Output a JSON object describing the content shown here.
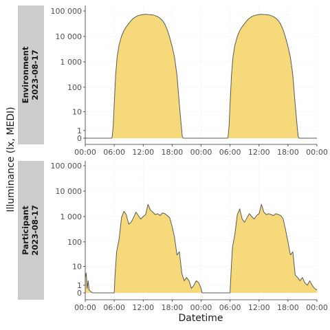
{
  "chart_data": {
    "type": "area",
    "xlabel": "Datetime",
    "ylabel": "Illuminance (lx, MEDI)",
    "x_ticks": [
      "00:00",
      "06:00",
      "12:00",
      "18:00",
      "00:00",
      "06:00",
      "12:00",
      "18:00",
      "00:00"
    ],
    "x_tick_hours": [
      0,
      6,
      12,
      18,
      24,
      30,
      36,
      42,
      48
    ],
    "x_range_hours": [
      0,
      48
    ],
    "y_scale": "symlog",
    "y_ticks": [
      "0",
      "1",
      "10",
      "100",
      "1 000",
      "10 000",
      "100 000"
    ],
    "y_tick_values": [
      0,
      1,
      10,
      100,
      1000,
      10000,
      100000
    ],
    "grid": true,
    "fill_color": "#f5d97a",
    "line_color": "#595959",
    "strip_color": "#cccccc",
    "panels": [
      {
        "strip_label_line1": "Environment",
        "strip_label_line2": "2023-08-17",
        "x_hours": [
          0,
          2,
          4,
          5.5,
          5.6,
          5.8,
          6,
          6.3,
          6.6,
          7,
          7.5,
          8,
          8.5,
          9,
          9.5,
          10,
          10.5,
          11,
          11.5,
          12,
          12.5,
          13,
          13.5,
          14,
          14.5,
          15,
          15.5,
          16,
          16.5,
          17,
          17.5,
          18,
          18.5,
          19,
          19.5,
          19.9,
          20.1,
          20.3,
          22,
          24,
          26,
          28,
          29.5,
          29.6,
          29.8,
          30,
          30.3,
          30.6,
          31,
          31.5,
          32,
          32.5,
          33,
          33.5,
          34,
          34.5,
          35,
          35.5,
          36,
          36.5,
          37,
          37.5,
          38,
          38.5,
          39,
          39.5,
          40,
          40.5,
          41,
          41.5,
          42,
          42.5,
          43,
          43.5,
          43.9,
          44.1,
          44.3,
          46,
          48
        ],
        "values": [
          0,
          0,
          0,
          0,
          0.2,
          2,
          20,
          300,
          1500,
          4500,
          10000,
          17000,
          24000,
          32000,
          42000,
          52000,
          60000,
          66000,
          70000,
          73000,
          74000,
          73000,
          72000,
          70000,
          66000,
          60000,
          52000,
          42000,
          30000,
          18000,
          9000,
          4000,
          1500,
          300,
          20,
          2,
          0.2,
          0,
          0,
          0,
          0,
          0,
          0,
          0.2,
          2,
          20,
          300,
          1500,
          4500,
          10000,
          17000,
          24000,
          32000,
          42000,
          52000,
          60000,
          66000,
          70000,
          73000,
          74000,
          73000,
          72000,
          70000,
          66000,
          60000,
          52000,
          42000,
          30000,
          18000,
          9000,
          4000,
          1500,
          300,
          20,
          2,
          0.2,
          0,
          0,
          0
        ]
      },
      {
        "strip_label_line1": "Participant",
        "strip_label_line2": "2023-08-17",
        "x_hours": [
          0,
          0.2,
          0.4,
          0.6,
          0.8,
          1,
          1.5,
          2,
          3,
          4,
          5,
          6,
          6.2,
          6.5,
          7,
          7.5,
          8,
          8.5,
          9,
          9.5,
          10,
          10.5,
          11,
          11.5,
          12,
          12.5,
          13,
          13.5,
          14,
          14.5,
          15,
          15.5,
          16,
          16.5,
          17,
          17.5,
          18,
          18.5,
          19,
          19.5,
          20,
          20.5,
          21,
          21.5,
          22,
          22.5,
          23,
          23.5,
          24,
          24.2,
          24.5,
          25,
          26,
          28,
          30,
          30.2,
          30.5,
          31,
          31.5,
          32,
          32.5,
          33,
          33.5,
          34,
          34.5,
          35,
          35.5,
          36,
          36.5,
          37,
          37.5,
          38,
          38.5,
          39,
          39.5,
          40,
          40.5,
          41,
          41.5,
          42,
          42.5,
          43,
          43.5,
          44,
          44.5,
          45,
          45.5,
          46,
          46.5,
          47,
          47.5,
          48
        ],
        "values": [
          3,
          5,
          0.5,
          2,
          0.3,
          0.2,
          0,
          0,
          0,
          0,
          0,
          0,
          5,
          40,
          120,
          900,
          1600,
          1200,
          500,
          600,
          900,
          1500,
          1100,
          800,
          1000,
          1200,
          3000,
          1800,
          1500,
          1200,
          1300,
          1100,
          1400,
          1300,
          1100,
          900,
          400,
          150,
          30,
          40,
          5,
          2,
          3,
          2,
          0.5,
          1,
          2,
          1.5,
          0.5,
          0,
          0,
          0,
          0,
          0,
          0,
          5,
          60,
          200,
          1200,
          2000,
          800,
          600,
          900,
          1300,
          1000,
          800,
          1100,
          1300,
          3000,
          1500,
          1200,
          1300,
          1200,
          1100,
          1300,
          1200,
          1100,
          800,
          300,
          100,
          30,
          40,
          4,
          3,
          2,
          3,
          1.5,
          1,
          2,
          1,
          0.5,
          0.3
        ]
      }
    ]
  }
}
